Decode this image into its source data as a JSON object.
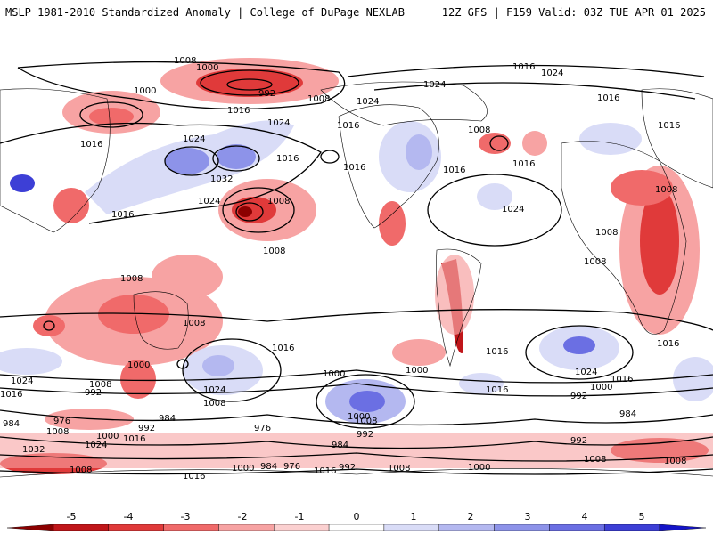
{
  "header": {
    "title": "MSLP 1981-2010 Standardized Anomaly | College of DuPage NEXLAB",
    "run_info": "12Z GFS | F159 Valid: 03Z TUE APR 01 2025"
  },
  "isobar_labels": [
    "1008",
    "1000",
    "992",
    "1000",
    "1008",
    "1016",
    "1016",
    "1024",
    "1024",
    "1016",
    "1032",
    "1024",
    "1008",
    "1016",
    "1024",
    "1016",
    "1016",
    "1008",
    "1016",
    "1016",
    "1016",
    "1024",
    "1016",
    "1008",
    "1008",
    "1008",
    "1008",
    "1008",
    "1008",
    "1016",
    "1000",
    "1000",
    "1008",
    "1008",
    "1024",
    "1024",
    "1016",
    "992",
    "1000",
    "1000",
    "1016",
    "1024",
    "1016",
    "1000",
    "992",
    "984",
    "984",
    "976",
    "992",
    "984",
    "976",
    "1008",
    "1000",
    "1032",
    "1024",
    "1016",
    "1008",
    "1016",
    "1000",
    "984",
    "976",
    "1016",
    "992",
    "1008",
    "992",
    "1008",
    "1000",
    "992",
    "984",
    "1016",
    "1024",
    "1008",
    "1016",
    "1008",
    "1016",
    "1024"
  ],
  "colorbar": {
    "ticks": [
      "-5",
      "-4",
      "-3",
      "-2",
      "-1",
      "0",
      "1",
      "2",
      "3",
      "4",
      "5"
    ],
    "colors": [
      "#8b0000",
      "#c0161a",
      "#e03a3a",
      "#f06a6a",
      "#f7a3a3",
      "#fbd0d0",
      "#ffffff",
      "#d9dcf7",
      "#b4b8f0",
      "#8d93e9",
      "#6b6fe3",
      "#3d3fd6",
      "#1414c8"
    ]
  }
}
